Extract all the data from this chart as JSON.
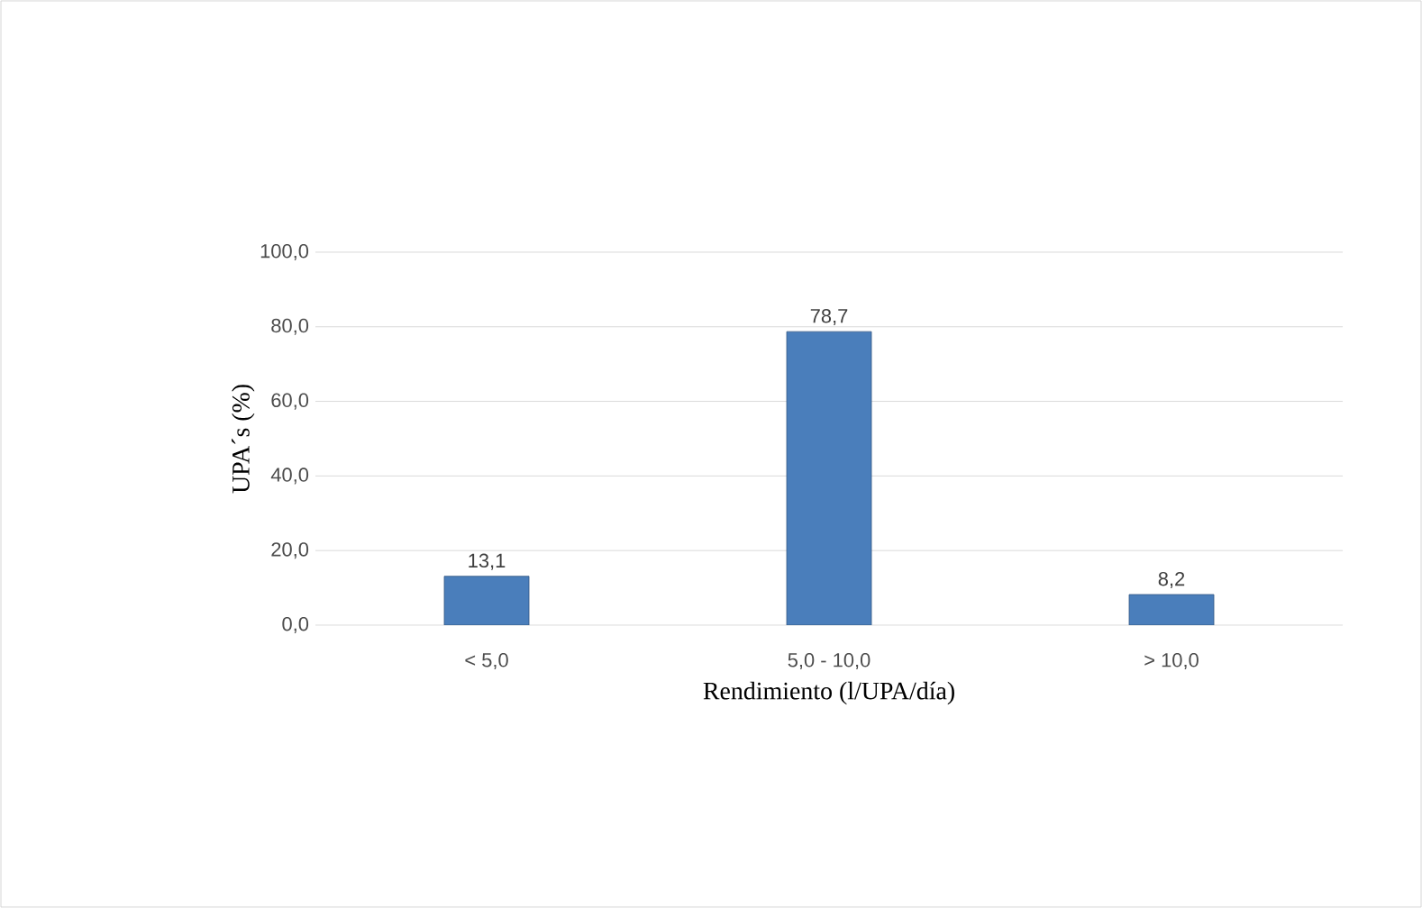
{
  "chart_data": {
    "type": "bar",
    "xlabel": "Rendimiento (l/UPA/día)",
    "ylabel": "UPA´s  (%)",
    "categories": [
      "< 5,0",
      "5,0 - 10,0",
      "> 10,0"
    ],
    "values": [
      13.1,
      78.7,
      8.2
    ],
    "value_labels": [
      "13,1",
      "78,7",
      "8,2"
    ],
    "color": "#4a7ebb",
    "ylim": [
      0,
      100
    ],
    "yticks": [
      {
        "value": 0,
        "label": "0,0"
      },
      {
        "value": 20,
        "label": "20,0"
      },
      {
        "value": 40,
        "label": "40,0"
      },
      {
        "value": 60,
        "label": "60,0"
      },
      {
        "value": 80,
        "label": "80,0"
      },
      {
        "value": 100,
        "label": "100,0"
      }
    ],
    "grid": "y"
  }
}
